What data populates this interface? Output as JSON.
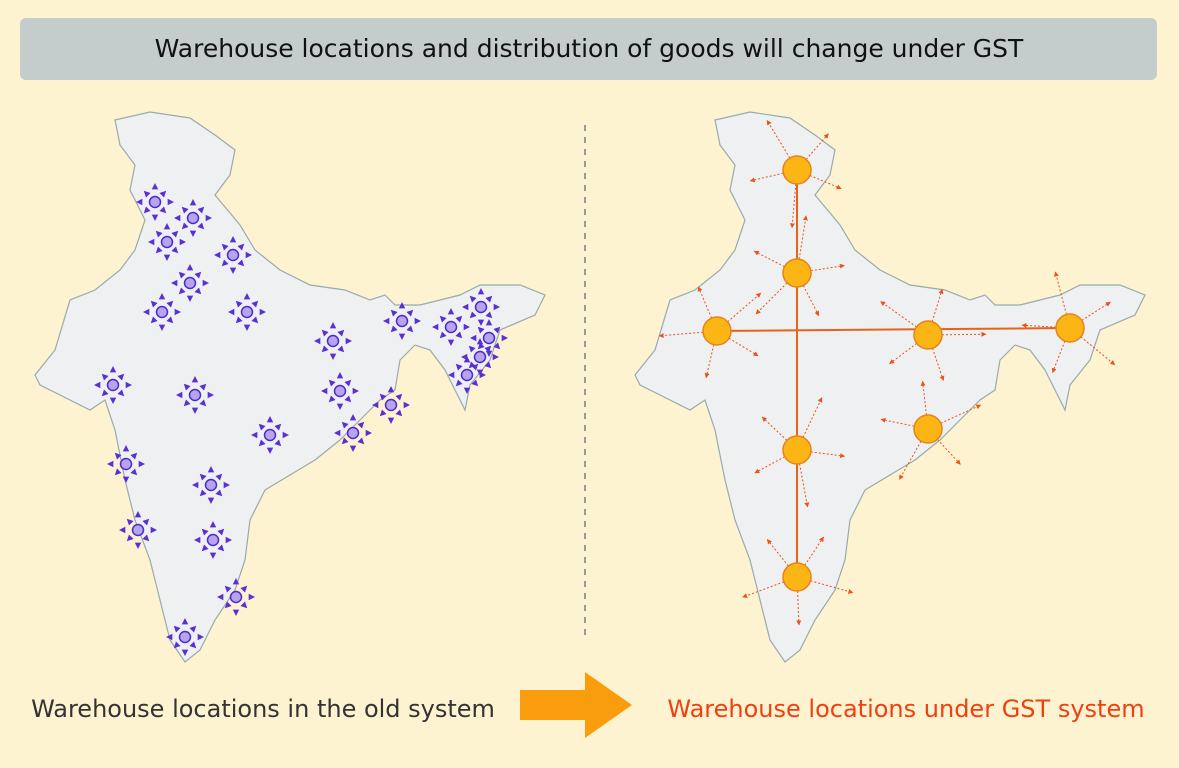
{
  "header": {
    "title": "Warehouse locations and distribution of goods will change under GST"
  },
  "captions": {
    "old": "Warehouse locations in the old system",
    "new": "Warehouse locations under GST system"
  }
}
